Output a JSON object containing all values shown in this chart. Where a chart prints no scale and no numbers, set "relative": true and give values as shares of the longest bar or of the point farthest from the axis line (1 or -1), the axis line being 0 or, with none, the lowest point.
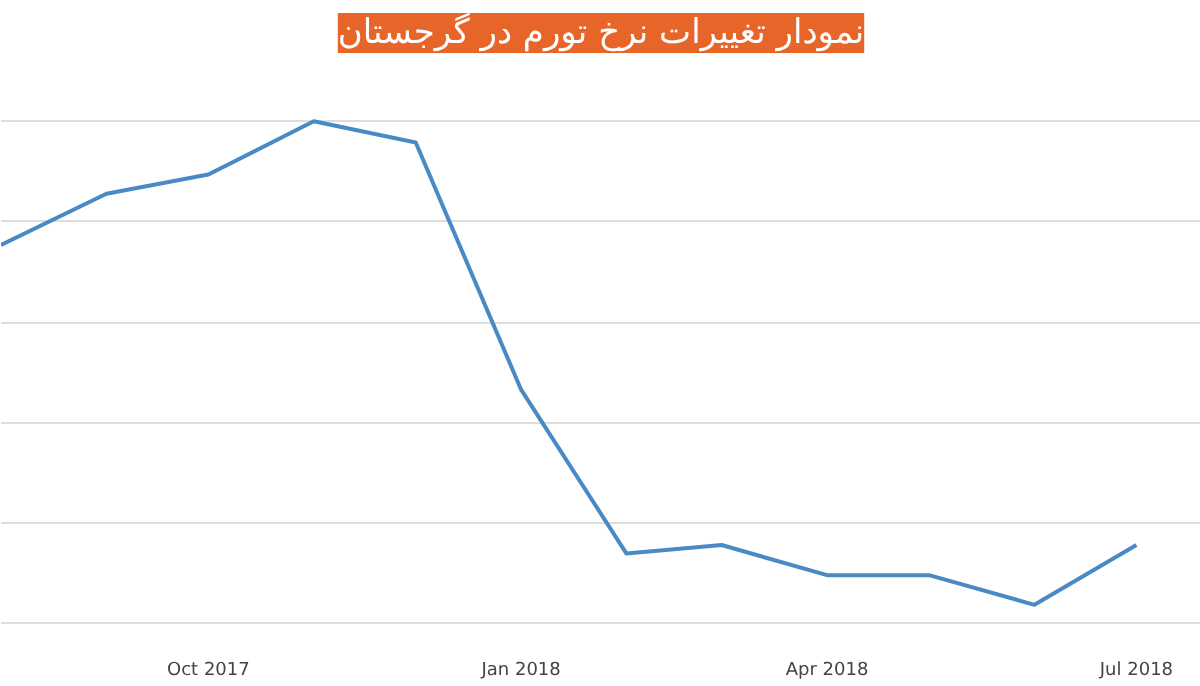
{
  "chart_data": {
    "type": "line",
    "title": "نمودار تغییرات نرخ تورم در گرجستان",
    "relative": true,
    "x": [
      "2017-08",
      "2017-09",
      "2017-10",
      "2017-11",
      "2017-12",
      "2018-01",
      "2018-02",
      "2018-03",
      "2018-04",
      "2018-05",
      "2018-06",
      "2018-07"
    ],
    "series": [
      {
        "color": "#4a8ac4",
        "values": [
          0.754,
          0.856,
          0.894,
          1,
          0.958,
          0.466,
          0.14,
          0.157,
          0.097,
          0.097,
          0.038,
          0.157
        ]
      }
    ],
    "xlim": [
      "2017-08-01",
      "2018-07-20"
    ],
    "xticks": [
      {
        "value": "2017-10",
        "label": "Oct 2017"
      },
      {
        "value": "2018-01",
        "label": "Jan 2018"
      },
      {
        "value": "2018-04",
        "label": "Apr 2018"
      },
      {
        "value": "2018-07",
        "label": "Jul 2018"
      }
    ],
    "grid": "y",
    "marker": "none",
    "line_style": "solid"
  }
}
